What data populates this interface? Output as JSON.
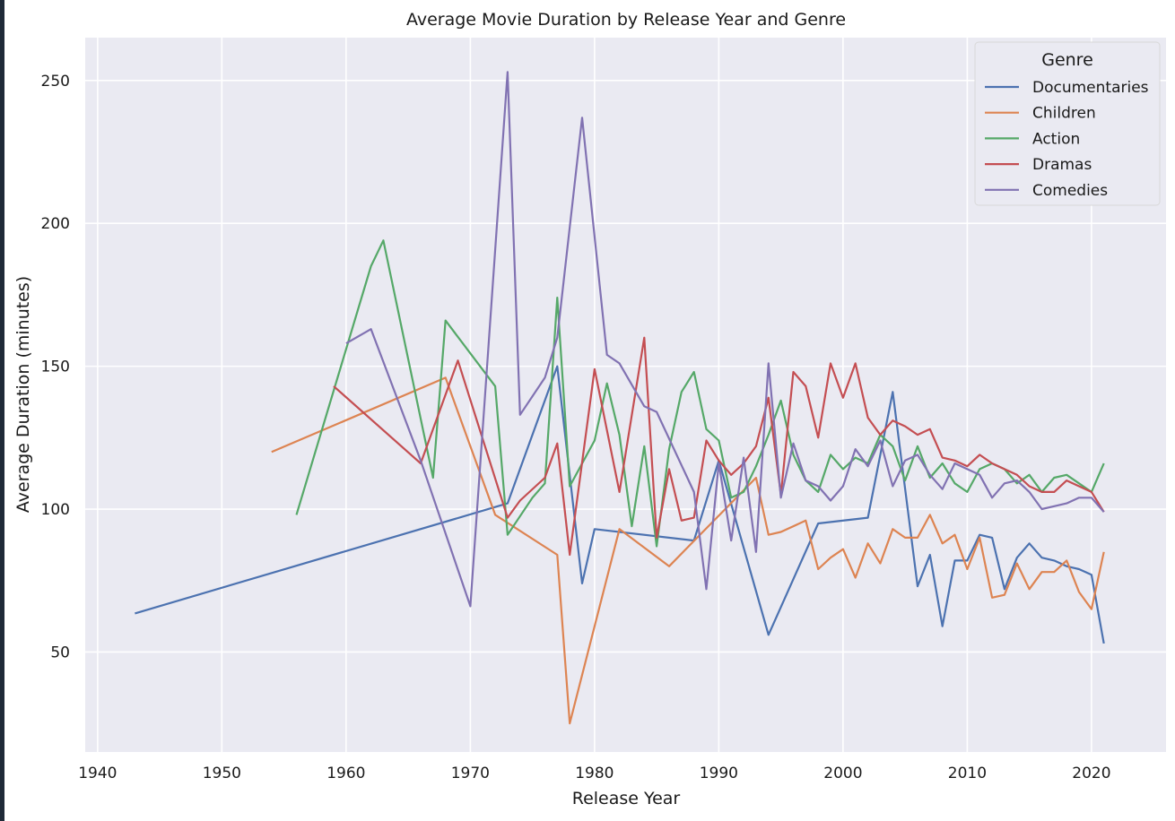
{
  "chart_data": {
    "type": "line",
    "title": "Average Movie Duration by Release Year and Genre",
    "xlabel": "Release Year",
    "ylabel": "Average Duration (minutes)",
    "xlim": [
      1939,
      2026
    ],
    "ylim": [
      15,
      265
    ],
    "xticks": [
      1940,
      1950,
      1960,
      1970,
      1980,
      1990,
      2000,
      2010,
      2020
    ],
    "yticks": [
      50,
      100,
      150,
      200,
      250
    ],
    "grid": true,
    "legend": {
      "title": "Genre",
      "placement": "top-right"
    },
    "series": [
      {
        "name": "Documentaries",
        "color": "#4c72b0",
        "points": [
          [
            1943,
            63.5
          ],
          [
            1973,
            102
          ],
          [
            1977,
            150
          ],
          [
            1979,
            74
          ],
          [
            1980,
            93
          ],
          [
            1988,
            89
          ],
          [
            1990,
            117
          ],
          [
            1994,
            56
          ],
          [
            1998,
            95
          ],
          [
            2002,
            97
          ],
          [
            2004,
            141
          ],
          [
            2006,
            73
          ],
          [
            2007,
            84
          ],
          [
            2008,
            59
          ],
          [
            2009,
            82
          ],
          [
            2010,
            82
          ],
          [
            2011,
            91
          ],
          [
            2012,
            90
          ],
          [
            2013,
            72
          ],
          [
            2014,
            83
          ],
          [
            2015,
            88
          ],
          [
            2016,
            83
          ],
          [
            2017,
            82
          ],
          [
            2018,
            80
          ],
          [
            2019,
            79
          ],
          [
            2020,
            77
          ],
          [
            2021,
            53
          ]
        ]
      },
      {
        "name": "Children",
        "color": "#dd8452",
        "points": [
          [
            1954,
            120
          ],
          [
            1968,
            146
          ],
          [
            1972,
            98
          ],
          [
            1977,
            84
          ],
          [
            1978,
            25
          ],
          [
            1982,
            93
          ],
          [
            1986,
            80
          ],
          [
            1993,
            111
          ],
          [
            1994,
            91
          ],
          [
            1995,
            92
          ],
          [
            1997,
            96
          ],
          [
            1998,
            79
          ],
          [
            1999,
            83
          ],
          [
            2000,
            86
          ],
          [
            2001,
            76
          ],
          [
            2002,
            88
          ],
          [
            2003,
            81
          ],
          [
            2004,
            93
          ],
          [
            2005,
            90
          ],
          [
            2006,
            90
          ],
          [
            2007,
            98
          ],
          [
            2008,
            88
          ],
          [
            2009,
            91
          ],
          [
            2010,
            79
          ],
          [
            2011,
            90
          ],
          [
            2012,
            69
          ],
          [
            2013,
            70
          ],
          [
            2014,
            81
          ],
          [
            2015,
            72
          ],
          [
            2016,
            78
          ],
          [
            2017,
            78
          ],
          [
            2018,
            82
          ],
          [
            2019,
            71
          ],
          [
            2020,
            65
          ],
          [
            2021,
            85
          ]
        ]
      },
      {
        "name": "Action",
        "color": "#55a868",
        "points": [
          [
            1956,
            98
          ],
          [
            1962,
            185
          ],
          [
            1963,
            194
          ],
          [
            1967,
            111
          ],
          [
            1968,
            166
          ],
          [
            1972,
            143
          ],
          [
            1973,
            91
          ],
          [
            1975,
            104
          ],
          [
            1976,
            109
          ],
          [
            1977,
            174
          ],
          [
            1978,
            108
          ],
          [
            1980,
            124
          ],
          [
            1981,
            144
          ],
          [
            1982,
            126
          ],
          [
            1983,
            94
          ],
          [
            1984,
            122
          ],
          [
            1985,
            87
          ],
          [
            1986,
            121
          ],
          [
            1987,
            141
          ],
          [
            1988,
            148
          ],
          [
            1989,
            128
          ],
          [
            1990,
            124
          ],
          [
            1991,
            104
          ],
          [
            1992,
            106
          ],
          [
            1993,
            115
          ],
          [
            1994,
            126
          ],
          [
            1995,
            138
          ],
          [
            1996,
            119
          ],
          [
            1997,
            110
          ],
          [
            1998,
            106
          ],
          [
            1999,
            119
          ],
          [
            2000,
            114
          ],
          [
            2001,
            118
          ],
          [
            2002,
            116
          ],
          [
            2003,
            126
          ],
          [
            2004,
            122
          ],
          [
            2005,
            110
          ],
          [
            2006,
            122
          ],
          [
            2007,
            111
          ],
          [
            2008,
            116
          ],
          [
            2009,
            109
          ],
          [
            2010,
            106
          ],
          [
            2011,
            114
          ],
          [
            2012,
            116
          ],
          [
            2013,
            114
          ],
          [
            2014,
            109
          ],
          [
            2015,
            112
          ],
          [
            2016,
            106
          ],
          [
            2017,
            111
          ],
          [
            2018,
            112
          ],
          [
            2019,
            109
          ],
          [
            2020,
            106
          ],
          [
            2021,
            116
          ]
        ]
      },
      {
        "name": "Dramas",
        "color": "#c44e52",
        "points": [
          [
            1959,
            143
          ],
          [
            1966,
            116
          ],
          [
            1969,
            152
          ],
          [
            1973,
            97
          ],
          [
            1974,
            103
          ],
          [
            1976,
            111
          ],
          [
            1977,
            123
          ],
          [
            1978,
            84
          ],
          [
            1980,
            149
          ],
          [
            1982,
            106
          ],
          [
            1984,
            160
          ],
          [
            1985,
            90
          ],
          [
            1986,
            114
          ],
          [
            1987,
            96
          ],
          [
            1988,
            97
          ],
          [
            1989,
            124
          ],
          [
            1990,
            117
          ],
          [
            1991,
            112
          ],
          [
            1992,
            116
          ],
          [
            1993,
            122
          ],
          [
            1994,
            139
          ],
          [
            1995,
            105
          ],
          [
            1996,
            148
          ],
          [
            1997,
            143
          ],
          [
            1998,
            125
          ],
          [
            1999,
            151
          ],
          [
            2000,
            139
          ],
          [
            2001,
            151
          ],
          [
            2002,
            132
          ],
          [
            2003,
            126
          ],
          [
            2004,
            131
          ],
          [
            2005,
            129
          ],
          [
            2006,
            126
          ],
          [
            2007,
            128
          ],
          [
            2008,
            118
          ],
          [
            2009,
            117
          ],
          [
            2010,
            115
          ],
          [
            2011,
            119
          ],
          [
            2012,
            116
          ],
          [
            2013,
            114
          ],
          [
            2014,
            112
          ],
          [
            2015,
            108
          ],
          [
            2016,
            106
          ],
          [
            2017,
            106
          ],
          [
            2018,
            110
          ],
          [
            2019,
            108
          ],
          [
            2020,
            106
          ],
          [
            2021,
            99
          ]
        ]
      },
      {
        "name": "Comedies",
        "color": "#8172b2",
        "points": [
          [
            1960,
            158
          ],
          [
            1962,
            163
          ],
          [
            1966,
            117
          ],
          [
            1970,
            66
          ],
          [
            1973,
            253
          ],
          [
            1974,
            133
          ],
          [
            1976,
            146
          ],
          [
            1977,
            160
          ],
          [
            1979,
            237
          ],
          [
            1981,
            154
          ],
          [
            1982,
            151
          ],
          [
            1984,
            136
          ],
          [
            1985,
            134
          ],
          [
            1988,
            106
          ],
          [
            1989,
            72
          ],
          [
            1990,
            116
          ],
          [
            1991,
            89
          ],
          [
            1992,
            118
          ],
          [
            1993,
            85
          ],
          [
            1994,
            151
          ],
          [
            1995,
            104
          ],
          [
            1996,
            123
          ],
          [
            1997,
            110
          ],
          [
            1998,
            108
          ],
          [
            1999,
            103
          ],
          [
            2000,
            108
          ],
          [
            2001,
            121
          ],
          [
            2002,
            115
          ],
          [
            2003,
            124
          ],
          [
            2004,
            108
          ],
          [
            2005,
            117
          ],
          [
            2006,
            119
          ],
          [
            2007,
            112
          ],
          [
            2008,
            107
          ],
          [
            2009,
            116
          ],
          [
            2010,
            114
          ],
          [
            2011,
            112
          ],
          [
            2012,
            104
          ],
          [
            2013,
            109
          ],
          [
            2014,
            110
          ],
          [
            2015,
            106
          ],
          [
            2016,
            100
          ],
          [
            2017,
            101
          ],
          [
            2018,
            102
          ],
          [
            2019,
            104
          ],
          [
            2020,
            104
          ],
          [
            2021,
            99
          ]
        ]
      }
    ]
  }
}
